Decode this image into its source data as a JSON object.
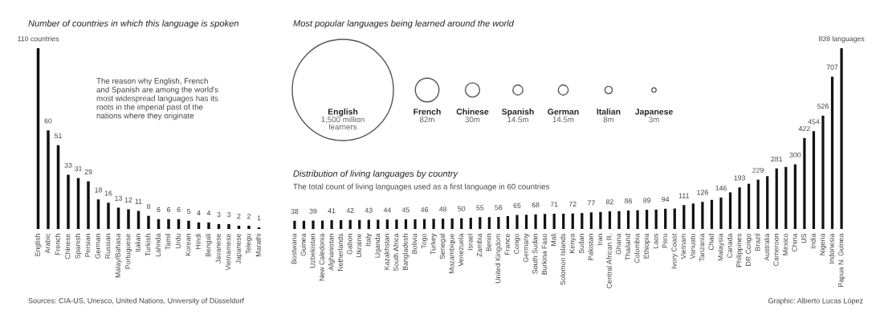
{
  "chart_data": [
    {
      "type": "bar",
      "title": "Number of countries in which this language is spoken",
      "color": "#111111",
      "categories": [
        "English",
        "Arabic",
        "French",
        "Chinese",
        "Spanish",
        "Persian",
        "German",
        "Russian",
        "Malay/Bahasa",
        "Portuguese",
        "Italian",
        "Turkish",
        "Lahnda",
        "Tamil",
        "Urdu",
        "Korean",
        "Hindi",
        "Bengali",
        "Javanese",
        "Vietnamese",
        "Japanese",
        "Telegu",
        "Marathi"
      ],
      "values": [
        110,
        60,
        51,
        33,
        31,
        29,
        18,
        16,
        13,
        12,
        11,
        8,
        6,
        6,
        6,
        5,
        4,
        4,
        3,
        3,
        2,
        2,
        1
      ],
      "value_labels": [
        "110 countries",
        "60",
        "51",
        "33",
        "31",
        "29",
        "18",
        "16",
        "13",
        "12",
        "11",
        "8",
        "6",
        "6",
        "6",
        "5",
        "4",
        "4",
        "3",
        "3",
        "2",
        "2",
        "1"
      ],
      "annotations": [
        "The reason why English, French\nand Spanish are among the world's\nmost widespread languages has its\nroots in the imperial past of the\nnations where they originate",
        "Sources: CIA-US, Unesco, United Nations, University of Düsseldorf"
      ]
    },
    {
      "type": "other",
      "title": "Most popular languages being learned around the world",
      "color": "#555555",
      "categories": [
        "English",
        "French",
        "Chinese",
        "Spanish",
        "German",
        "Italian",
        "Japanese"
      ],
      "values": [
        1500,
        82,
        30,
        14.5,
        14.5,
        8,
        3
      ],
      "value_labels": [
        "1,500 million\nlearners",
        "82m",
        "30m",
        "14.5m",
        "14.5m",
        "8m",
        "3m"
      ]
    },
    {
      "type": "bar",
      "title": "Distribution of living languages by country",
      "subtitle": "The total count of living languages used as a first language in 60 countries",
      "color": "#111111",
      "categories": [
        "Bostwana",
        "Guinea",
        "Uzbekistan",
        "New Caledonia",
        "Afghanistan",
        "Netherlands",
        "Gabon",
        "Ukraine",
        "Italy",
        "Uganda",
        "Kazakhstan",
        "South Africa",
        "Bangladesh",
        "Bolivia",
        "Togo",
        "Turkey",
        "Senegal",
        "Mozambique",
        "Venezuela",
        "Israel",
        "Zambia",
        "Benin",
        "United Kingdom",
        "France",
        "Congo",
        "Germany",
        "South Sudan",
        "Burkina Faso",
        "Mali",
        "Solomon Islands",
        "Kenya",
        "Sudan",
        "Pakistan",
        "Iran",
        "Central African R.",
        "Ghana",
        "Thailand",
        "Colombia",
        "Ethiopia",
        "Laos",
        "Peru",
        "Ivory Coast",
        "Vietnam",
        "Vanuatu",
        "Tanzania",
        "Chad",
        "Malaysia",
        "Canada",
        "Philippines",
        "DR Congo",
        "Brazil",
        "Australia",
        "Cameroon",
        "Mexico",
        "China",
        "US",
        "India",
        "Nigeria",
        "Indonesia",
        "Papua N. Guinea"
      ],
      "values": [
        38,
        38,
        39,
        39,
        41,
        41,
        42,
        42,
        43,
        43,
        44,
        44,
        45,
        45,
        46,
        47,
        48,
        49,
        50,
        52,
        55,
        55,
        56,
        60,
        65,
        66,
        68,
        70,
        71,
        71,
        72,
        74,
        77,
        79,
        82,
        83,
        86,
        87,
        89,
        90,
        94,
        95,
        111,
        118,
        126,
        135,
        146,
        170,
        193,
        210,
        229,
        245,
        281,
        288,
        300,
        422,
        454,
        526,
        707,
        839
      ],
      "value_labels": [
        "38",
        null,
        "39",
        null,
        "41",
        null,
        "42",
        null,
        "43",
        null,
        "44",
        null,
        "45",
        null,
        "46",
        null,
        "48",
        null,
        "50",
        null,
        "55",
        null,
        "56",
        null,
        "65",
        null,
        "68",
        null,
        "71",
        null,
        "72",
        null,
        "77",
        null,
        "82",
        null,
        "86",
        null,
        "89",
        null,
        "94",
        null,
        "111",
        null,
        "126",
        null,
        "146",
        null,
        "193",
        null,
        "229",
        null,
        "281",
        null,
        "300",
        "422",
        "454",
        "526",
        "707",
        "839 languages"
      ],
      "annotations": [
        "Graphic: Alberto Lucas López"
      ]
    }
  ]
}
